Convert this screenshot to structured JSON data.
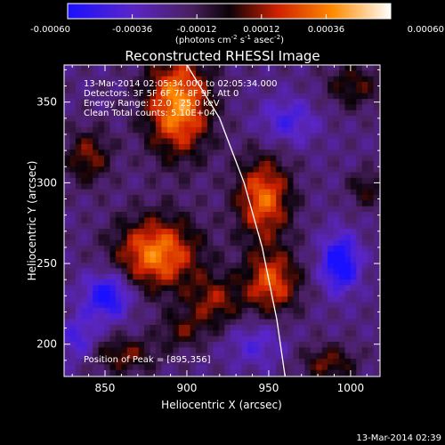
{
  "chart_data": {
    "type": "heatmap",
    "title": "Reconstructed RHESSI Image",
    "xlabel": "Heliocentric X (arcsec)",
    "ylabel": "Heliocentric Y (arcsec)",
    "xlim": [
      825,
      1018
    ],
    "ylim": [
      180,
      373
    ],
    "x_ticks": [
      850,
      900,
      950,
      1000
    ],
    "y_ticks": [
      200,
      250,
      300,
      350
    ],
    "colorbar": {
      "range": [
        -0.0006,
        0.0006
      ],
      "tick_values": [
        -0.0006,
        -0.00036,
        -0.00012,
        0.00012,
        0.00036,
        0.0006
      ],
      "tick_labels": [
        "-0.00060",
        "-0.00036",
        "-0.00012",
        "0.00012",
        "0.00036",
        "0.00060"
      ],
      "units_prefix": "(photons cm",
      "units_exp1": "-2",
      "units_mid": " s",
      "units_exp2": "-1",
      "units_mid2": " asec",
      "units_exp3": "-2",
      "units_suffix": ")",
      "colors": [
        "#1a10ff",
        "#5a25c8",
        "#4a2060",
        "#0a0208",
        "#d02000",
        "#ff8a00",
        "#ffffff"
      ]
    },
    "annotations": {
      "time_range": "13-Mar-2014 02:05:34.000 to 02:05:34.000",
      "detectors": "Detectors: 3F 5F 6F 7F 8F 9F, Att 0",
      "energy": "Energy Range: 12.0 - 25.0 keV",
      "method": "Clean    Total counts: 5.10E+04",
      "peak": "Position of Peak = [895,356]"
    },
    "peak_position": [
      895,
      356
    ],
    "sources": [
      {
        "x": 880,
        "y": 258,
        "amp": 0.00055,
        "sx": 18,
        "sy": 16
      },
      {
        "x": 945,
        "y": 292,
        "amp": 0.0005,
        "sx": 12,
        "sy": 18
      },
      {
        "x": 950,
        "y": 240,
        "amp": 0.00045,
        "sx": 12,
        "sy": 14
      },
      {
        "x": 893,
        "y": 350,
        "amp": 0.0006,
        "sx": 14,
        "sy": 22
      },
      {
        "x": 915,
        "y": 228,
        "amp": 0.0003,
        "sx": 12,
        "sy": 12
      },
      {
        "x": 838,
        "y": 318,
        "amp": 0.0003,
        "sx": 10,
        "sy": 12
      },
      {
        "x": 985,
        "y": 190,
        "amp": 0.00028,
        "sx": 12,
        "sy": 8
      },
      {
        "x": 860,
        "y": 195,
        "amp": 0.00028,
        "sx": 14,
        "sy": 8
      },
      {
        "x": 1000,
        "y": 362,
        "amp": 0.00025,
        "sx": 12,
        "sy": 10
      },
      {
        "x": 1008,
        "y": 298,
        "amp": 0.00022,
        "sx": 8,
        "sy": 8
      },
      {
        "x": 895,
        "y": 210,
        "amp": 0.00022,
        "sx": 10,
        "sy": 8
      },
      {
        "x": 992,
        "y": 252,
        "amp": -0.0005,
        "sx": 8,
        "sy": 12
      },
      {
        "x": 850,
        "y": 232,
        "amp": -0.00045,
        "sx": 10,
        "sy": 10
      },
      {
        "x": 960,
        "y": 340,
        "amp": -0.00025,
        "sx": 12,
        "sy": 10
      },
      {
        "x": 832,
        "y": 205,
        "amp": -0.00025,
        "sx": 8,
        "sy": 10
      },
      {
        "x": 940,
        "y": 202,
        "amp": -0.0002,
        "sx": 12,
        "sy": 10
      }
    ],
    "background_value": -0.0002,
    "limb": [
      [
        900,
        373
      ],
      [
        920,
        340
      ],
      [
        935,
        300
      ],
      [
        946,
        260
      ],
      [
        955,
        215
      ],
      [
        960,
        180
      ]
    ]
  },
  "footer_timestamp": "13-Mar-2014 02:39"
}
